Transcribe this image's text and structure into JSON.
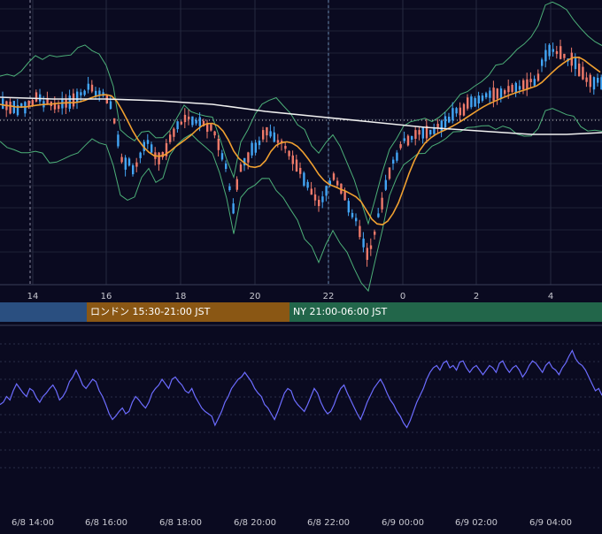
{
  "chart_data": [
    {
      "type": "candlestick",
      "title": "",
      "x_ticks": [
        "14",
        "16",
        "18",
        "20",
        "22",
        "0",
        "2",
        "4"
      ],
      "overlays": [
        "bollinger-bands",
        "moving-average-orange",
        "moving-average-white"
      ],
      "candles": [],
      "ohlc_note": ""
    },
    {
      "type": "line",
      "title": "",
      "x_ticks": [
        "6/8 14:00",
        "6/8 16:00",
        "6/8 18:00",
        "6/8 20:00",
        "6/8 22:00",
        "6/9 00:00",
        "6/9 02:00",
        "6/9 04:00"
      ],
      "series": [
        {
          "values": [
            0.48,
            0.5,
            0.55,
            0.52,
            0.6,
            0.66,
            0.62,
            0.58,
            0.55,
            0.62,
            0.6,
            0.54,
            0.5,
            0.55,
            0.58,
            0.62,
            0.65,
            0.6,
            0.52,
            0.55,
            0.6,
            0.68,
            0.72,
            0.78,
            0.72,
            0.65,
            0.62,
            0.66,
            0.7,
            0.68,
            0.6,
            0.55,
            0.48,
            0.4,
            0.35,
            0.38,
            0.42,
            0.45,
            0.4,
            0.42,
            0.5,
            0.55,
            0.52,
            0.48,
            0.45,
            0.5,
            0.58,
            0.62,
            0.65,
            0.7,
            0.66,
            0.62,
            0.7,
            0.72,
            0.68,
            0.65,
            0.6,
            0.58,
            0.62,
            0.55,
            0.5,
            0.45,
            0.42,
            0.4,
            0.38,
            0.3,
            0.36,
            0.42,
            0.5,
            0.55,
            0.62,
            0.66,
            0.7,
            0.72,
            0.76,
            0.72,
            0.68,
            0.62,
            0.58,
            0.55,
            0.48,
            0.45,
            0.4,
            0.35,
            0.42,
            0.5,
            0.58,
            0.62,
            0.6,
            0.52,
            0.48,
            0.45,
            0.42,
            0.48,
            0.55,
            0.62,
            0.58,
            0.5,
            0.44,
            0.4,
            0.42,
            0.48,
            0.56,
            0.62,
            0.65,
            0.58,
            0.52,
            0.46,
            0.4,
            0.35,
            0.42,
            0.5,
            0.56,
            0.62,
            0.66,
            0.7,
            0.65,
            0.58,
            0.52,
            0.48,
            0.42,
            0.38,
            0.32,
            0.28,
            0.34,
            0.42,
            0.5,
            0.56,
            0.62,
            0.7,
            0.76,
            0.8,
            0.82,
            0.78,
            0.84,
            0.86,
            0.8,
            0.82,
            0.78,
            0.85,
            0.86,
            0.8,
            0.76,
            0.8,
            0.82,
            0.78,
            0.74,
            0.78,
            0.82,
            0.8,
            0.76,
            0.84,
            0.86,
            0.8,
            0.76,
            0.8,
            0.82,
            0.78,
            0.72,
            0.76,
            0.82,
            0.86,
            0.84,
            0.8,
            0.76,
            0.82,
            0.85,
            0.8,
            0.78,
            0.74,
            0.8,
            0.84,
            0.9,
            0.95,
            0.88,
            0.84,
            0.82,
            0.78,
            0.72,
            0.66,
            0.6,
            0.62,
            0.56
          ]
        }
      ]
    }
  ],
  "sessions": {
    "tokyo": "",
    "london": "ロンドン 15:30-21:00 JST",
    "ny": "NY 21:00-06:00 JST"
  },
  "colors": {
    "background": "#0a0a20",
    "up_candle": "#42a5f5",
    "down_candle": "#ef7a6a",
    "bollinger": "#4caf78",
    "ma_fast": "#f0a030",
    "ma_slow": "#f0f0f0",
    "oscillator": "#6c6cff"
  }
}
